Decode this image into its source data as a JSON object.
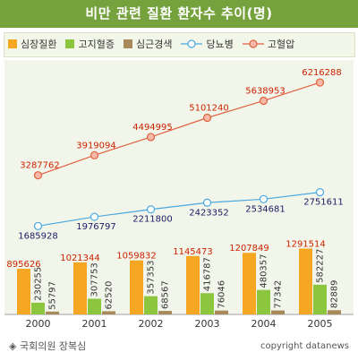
{
  "header": {
    "title": "비만 관련 질환 환자수 추이(명)"
  },
  "footer": {
    "source": "◈ 국회의원 장복심",
    "copyright": "copyright datanews"
  },
  "chart_data": {
    "type": "bar+line",
    "title": "비만 관련 질환 환자수 추이(명)",
    "categories": [
      "2000",
      "2001",
      "2002",
      "2003",
      "2004",
      "2005"
    ],
    "legend_position": "top",
    "bar_series": [
      {
        "name": "심장질환",
        "color": "#f5a623",
        "values": [
          895626,
          1021344,
          1059832,
          1145473,
          1207849,
          1291514
        ],
        "label_color": "#cc2200"
      },
      {
        "name": "고지혈증",
        "color": "#8cc63f",
        "values": [
          230255,
          307753,
          357353,
          416787,
          480357,
          582227
        ],
        "label_color": "#333333"
      },
      {
        "name": "심근경색",
        "color": "#a88a5a",
        "values": [
          55797,
          62520,
          68567,
          76046,
          77342,
          82889
        ],
        "label_color": "#333333"
      }
    ],
    "line_series": [
      {
        "name": "당뇨병",
        "color": "#4aa8e0",
        "values": [
          1685928,
          1976797,
          2211800,
          2423352,
          2534681,
          2751611
        ],
        "label_color": "#1a1a66"
      },
      {
        "name": "고혈압",
        "color": "#e06040",
        "values": [
          3287762,
          3919094,
          4494995,
          5101240,
          5638953,
          6216288
        ],
        "label_color": "#cc2200"
      }
    ],
    "bar_axis_max": 1300000,
    "line_axis_max": 6500000,
    "grid": false
  }
}
